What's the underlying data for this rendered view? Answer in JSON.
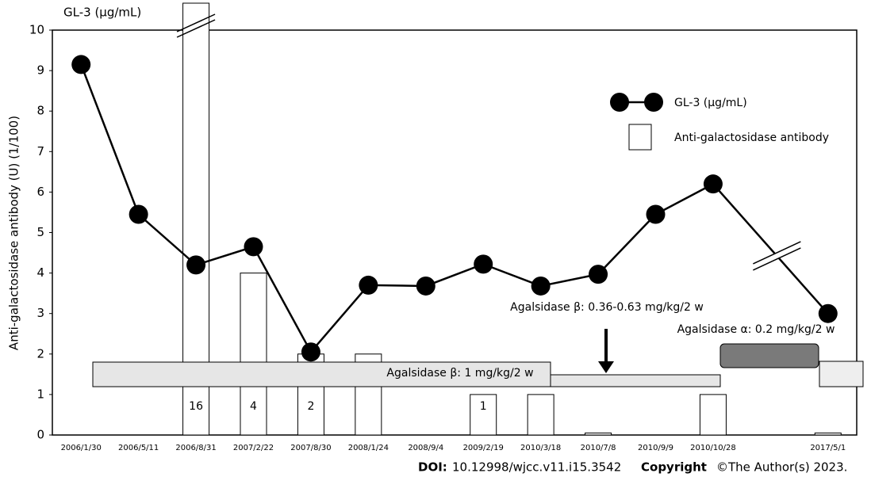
{
  "chart_data": {
    "type": "bar_line",
    "title": "GL-3 (μg/mL)",
    "y_label": "Anti-galactosidase antibody (U) (1/100)",
    "categories": [
      "2006/1/30",
      "2006/5/11",
      "2006/8/31",
      "2007/2/22",
      "2007/8/30",
      "2008/1/24",
      "2008/9/4",
      "2009/2/19",
      "2010/3/18",
      "2010/7/8",
      "2010/9/9",
      "2010/10/28",
      null,
      "2017/5/1"
    ],
    "series": [
      {
        "name": "GL-3 (μg/mL)",
        "type": "line",
        "color": "#000000",
        "values": [
          9.15,
          5.45,
          4.2,
          4.65,
          2.05,
          3.7,
          3.68,
          4.22,
          3.68,
          3.97,
          5.45,
          6.2,
          null,
          3.0
        ]
      },
      {
        "name": "Anti-galactosidase antibody",
        "type": "bar",
        "color": "#ffffff",
        "values": [
          null,
          null,
          16,
          4,
          2,
          2,
          null,
          1,
          1,
          0.05,
          null,
          1,
          null,
          0.05
        ],
        "value_labels": [
          null,
          null,
          "16",
          "4",
          "2",
          null,
          null,
          "1",
          null,
          null,
          null,
          null,
          null,
          null
        ]
      }
    ],
    "ylim": [
      0,
      10
    ],
    "yticks": [
      0,
      1,
      2,
      3,
      4,
      5,
      6,
      7,
      8,
      9,
      10
    ],
    "annotations": [
      "Agalsidase β: 1 mg/kg/2 w",
      "Agalsidase β: 0.36-0.63 mg/kg/2 w",
      "Agalsidase α: 0.2 mg/kg/2 w"
    ],
    "footer": {
      "doi_label": "DOI:",
      "doi": "10.12998/wjcc.v11.i15.3542",
      "copyright_label": "Copyright",
      "copyright": "©The Author(s) 2023."
    }
  }
}
